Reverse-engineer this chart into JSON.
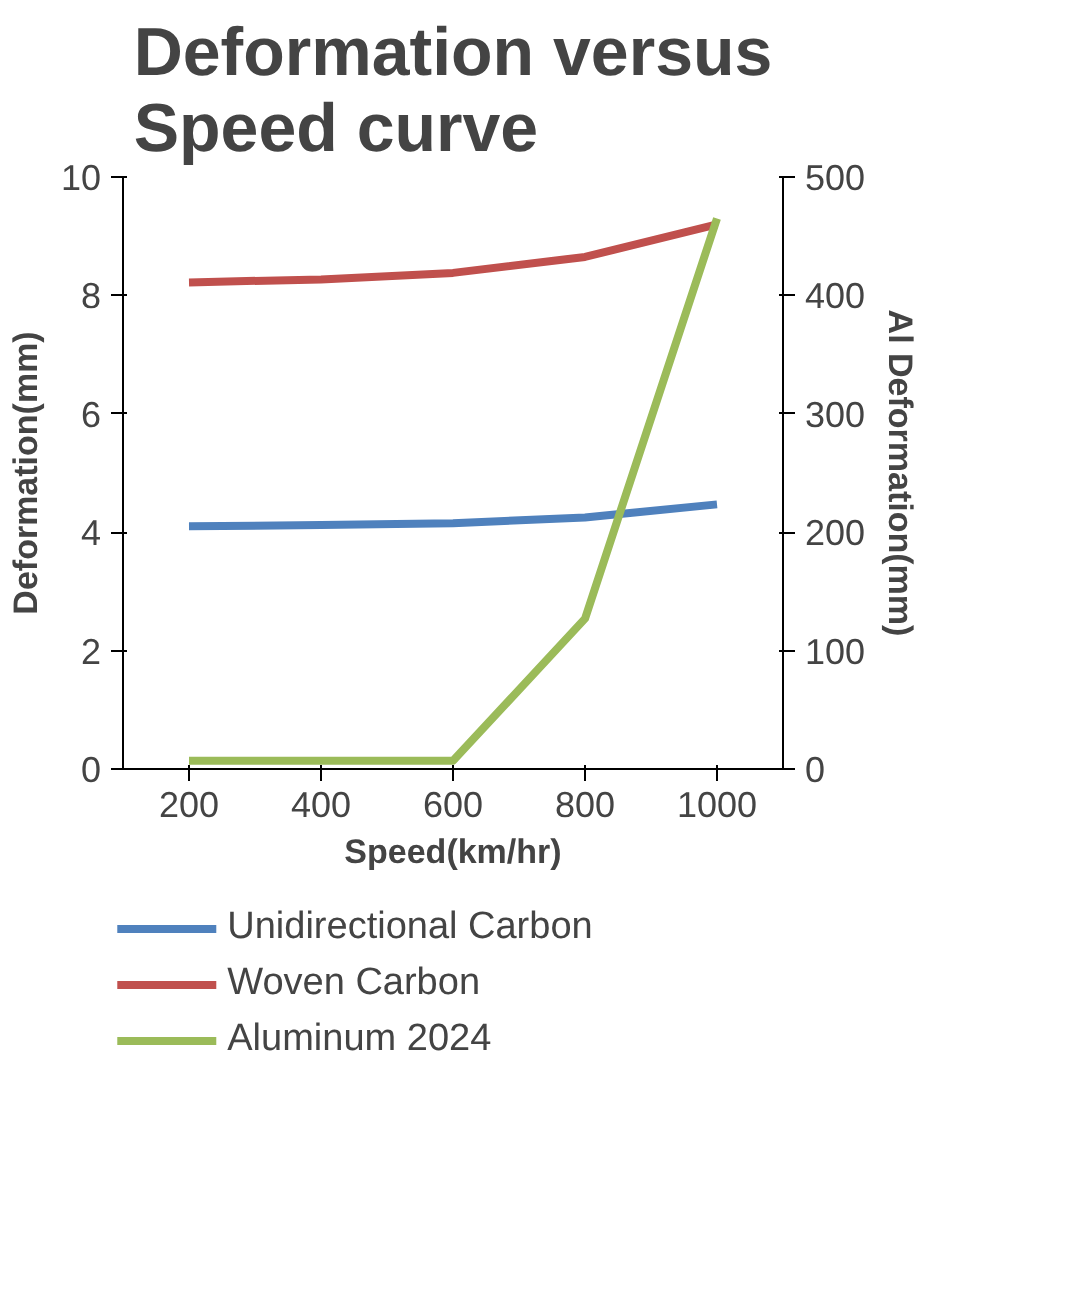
{
  "chart_data": {
    "type": "line",
    "title": "Deformation versus Speed curve",
    "xlabel": "Speed(km/hr)",
    "ylabel": "Deformation(mm)",
    "y2label": "Al Deformation(mm)",
    "categories": [
      "200",
      "400",
      "600",
      "800",
      "1000"
    ],
    "ylim": [
      0,
      10
    ],
    "yticks": [
      0,
      2,
      4,
      6,
      8,
      10
    ],
    "y2lim": [
      0,
      500
    ],
    "y2ticks": [
      0,
      100,
      200,
      300,
      400,
      500
    ],
    "grid": false,
    "legend": "bottom",
    "marker": "none",
    "line_style": "solid",
    "series": [
      {
        "name": "Unidirectional Carbon",
        "color": "#4f81bd",
        "values": [
          4.1,
          4.12,
          4.15,
          4.25,
          4.47
        ]
      },
      {
        "name": "Woven Carbon",
        "color": "#c0504d",
        "values": [
          8.22,
          8.27,
          8.38,
          8.65,
          9.2
        ]
      },
      {
        "name": "Aluminum 2024",
        "color": "#9bbb59",
        "axis": "y2",
        "values": [
          7,
          7,
          7,
          127,
          465
        ]
      }
    ]
  }
}
